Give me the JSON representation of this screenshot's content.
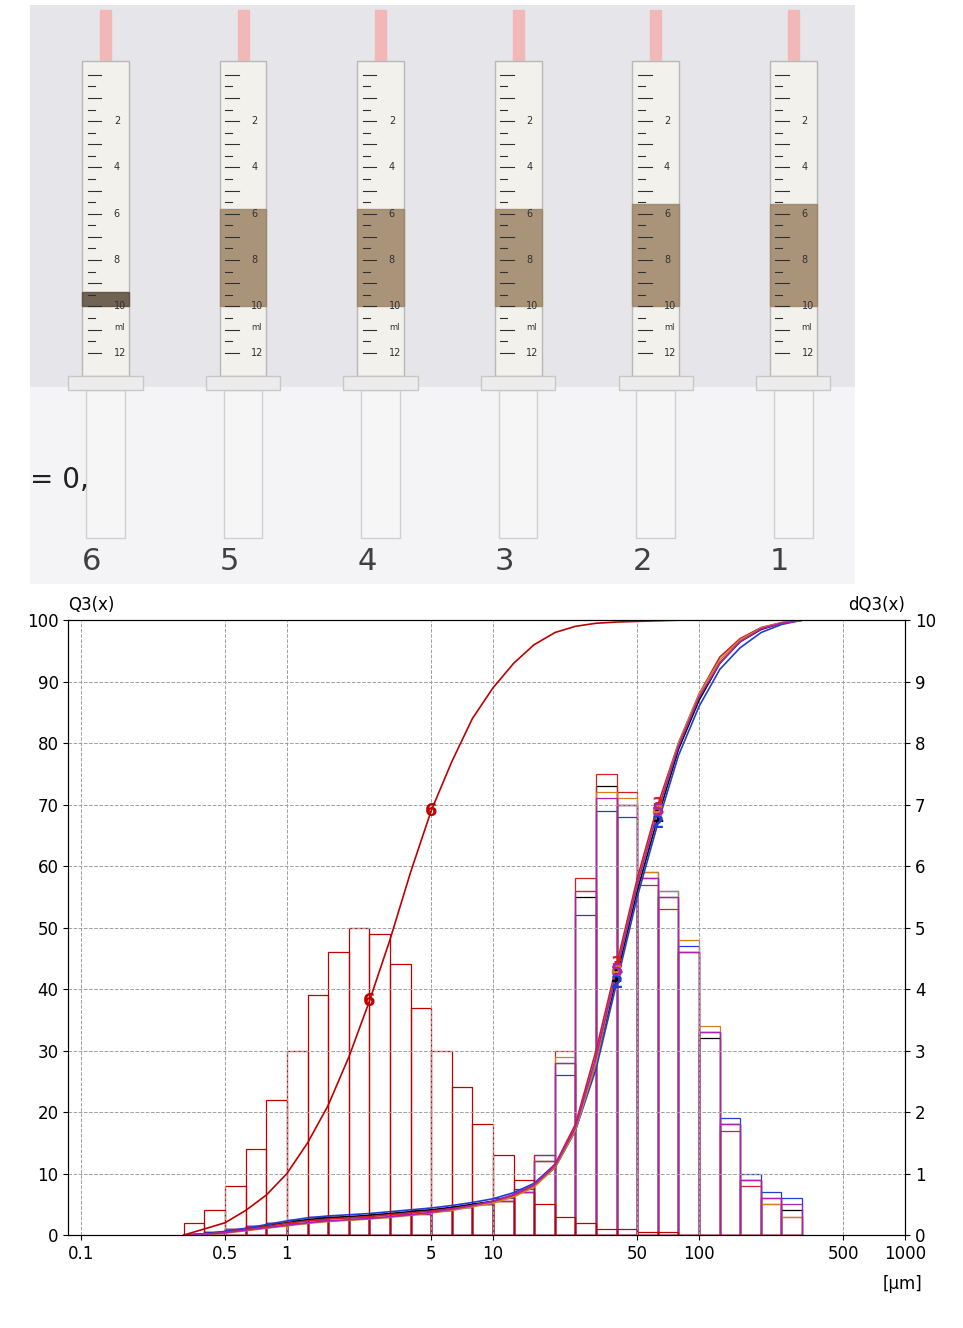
{
  "photo": {
    "syringes": [
      "6",
      "5",
      "4",
      "3",
      "2",
      "1"
    ],
    "scale_labels": [
      2,
      4,
      6,
      8,
      10,
      12
    ],
    "scale_unit": "ml",
    "note": "= 0,",
    "liquid_ml": [
      [
        9.4,
        10
      ],
      [
        5.8,
        10
      ],
      [
        5.8,
        10
      ],
      [
        5.8,
        10
      ],
      [
        5.6,
        10
      ],
      [
        5.6,
        10
      ]
    ]
  },
  "chart_data": {
    "type": "histogram",
    "y_label": "Q3(x)",
    "y2_label": "dQ3(x)",
    "x_label": "[µm]",
    "log": "x",
    "grid": true,
    "xlim": [
      0.087,
      1000
    ],
    "xticks": [
      0.1,
      0.5,
      1,
      5,
      10,
      50,
      100,
      500,
      1000
    ],
    "ylim": [
      0,
      100
    ],
    "yticks": [
      0,
      10,
      20,
      30,
      40,
      50,
      60,
      70,
      80,
      90,
      100
    ],
    "y2lim": [
      0,
      10
    ],
    "y2ticks": [
      0,
      1,
      2,
      3,
      4,
      5,
      6,
      7,
      8,
      9,
      10
    ],
    "x": [
      0.316,
      0.398,
      0.501,
      0.631,
      0.794,
      1,
      1.26,
      1.58,
      2,
      2.51,
      3.16,
      3.98,
      5.01,
      6.31,
      7.94,
      10,
      12.6,
      15.8,
      20,
      25.1,
      31.6,
      39.8,
      50.1,
      63.1,
      79.4,
      100,
      126,
      158,
      200,
      251,
      316
    ],
    "bins": [
      0.316,
      0.398,
      0.501,
      0.631,
      0.794,
      1,
      1.26,
      1.58,
      2,
      2.51,
      3.16,
      3.98,
      5.01,
      6.31,
      7.94,
      10,
      12.6,
      15.8,
      20,
      25.1,
      31.6,
      39.8,
      50.1,
      63.1,
      79.4,
      100,
      126,
      158,
      200,
      251,
      316
    ],
    "series": [
      {
        "name": "1",
        "type": "bar",
        "axis": "y2",
        "color": "#000000",
        "values": [
          0,
          0.05,
          0.1,
          0.15,
          0.2,
          0.25,
          0.3,
          0.3,
          0.3,
          0.35,
          0.35,
          0.4,
          0.4,
          0.45,
          0.5,
          0.55,
          0.7,
          1.2,
          2.8,
          5.5,
          7.3,
          7.0,
          5.8,
          5.5,
          4.6,
          3.2,
          1.8,
          0.9,
          0.6,
          0.4
        ]
      },
      {
        "name": "2",
        "type": "bar",
        "axis": "y2",
        "color": "#1f3fd0",
        "values": [
          0,
          0.05,
          0.1,
          0.15,
          0.2,
          0.25,
          0.3,
          0.3,
          0.3,
          0.35,
          0.35,
          0.4,
          0.4,
          0.45,
          0.5,
          0.6,
          0.75,
          1.3,
          2.6,
          5.2,
          6.9,
          6.8,
          5.9,
          5.6,
          4.7,
          3.3,
          1.9,
          1.0,
          0.7,
          0.6
        ]
      },
      {
        "name": "3",
        "type": "bar",
        "axis": "y2",
        "color": "#d02020",
        "values": [
          0,
          0.05,
          0.1,
          0.15,
          0.2,
          0.2,
          0.25,
          0.3,
          0.3,
          0.3,
          0.35,
          0.35,
          0.4,
          0.45,
          0.5,
          0.55,
          0.7,
          1.3,
          3.0,
          5.8,
          7.5,
          7.2,
          5.7,
          5.3,
          4.6,
          3.3,
          1.7,
          0.8,
          0.5,
          0.3
        ]
      },
      {
        "name": "4",
        "type": "bar",
        "axis": "y2",
        "color": "#d08020",
        "values": [
          0,
          0.05,
          0.1,
          0.15,
          0.15,
          0.2,
          0.25,
          0.3,
          0.3,
          0.3,
          0.35,
          0.35,
          0.4,
          0.45,
          0.5,
          0.55,
          0.7,
          1.2,
          2.9,
          5.6,
          7.2,
          7.1,
          5.9,
          5.6,
          4.8,
          3.4,
          1.8,
          0.9,
          0.5,
          0.3
        ]
      },
      {
        "name": "5",
        "type": "bar",
        "axis": "y2",
        "color": "#b020b0",
        "values": [
          0,
          0.05,
          0.1,
          0.15,
          0.2,
          0.2,
          0.25,
          0.3,
          0.3,
          0.3,
          0.35,
          0.35,
          0.4,
          0.45,
          0.5,
          0.55,
          0.7,
          1.2,
          2.8,
          5.6,
          7.1,
          7.0,
          5.8,
          5.5,
          4.6,
          3.3,
          1.8,
          0.9,
          0.6,
          0.5
        ]
      },
      {
        "name": "6",
        "type": "bar",
        "axis": "y2",
        "color": "#c00000",
        "values": [
          0.2,
          0.4,
          0.8,
          1.4,
          2.2,
          3.0,
          3.9,
          4.6,
          5.0,
          4.9,
          4.4,
          3.7,
          3.0,
          2.4,
          1.8,
          1.3,
          0.9,
          0.5,
          0.3,
          0.2,
          0.1,
          0.1,
          0.05,
          0.05,
          0,
          0,
          0,
          0,
          0,
          0
        ]
      },
      {
        "name": "1",
        "type": "line",
        "color": "#000000",
        "values": [
          0,
          0.2,
          0.5,
          1,
          1.5,
          2,
          2.5,
          2.8,
          3,
          3.2,
          3.5,
          3.8,
          4.1,
          4.5,
          5,
          5.5,
          6.5,
          8,
          11,
          17,
          28,
          42,
          56,
          68,
          79,
          87,
          93,
          96.5,
          98.5,
          99.5,
          100
        ]
      },
      {
        "name": "2",
        "type": "line",
        "color": "#1f3fd0",
        "values": [
          0,
          0.2,
          0.6,
          1.1,
          1.7,
          2.3,
          2.8,
          3.1,
          3.3,
          3.5,
          3.8,
          4.1,
          4.4,
          4.8,
          5.3,
          5.9,
          6.9,
          8.4,
          11.5,
          17,
          27,
          41,
          55,
          67,
          78,
          86,
          92,
          95.5,
          98,
          99.3,
          100
        ]
      },
      {
        "name": "3",
        "type": "line",
        "color": "#d02020",
        "values": [
          0,
          0.1,
          0.4,
          0.9,
          1.4,
          1.9,
          2.3,
          2.6,
          2.8,
          3,
          3.3,
          3.6,
          3.9,
          4.3,
          4.8,
          5.4,
          6.4,
          8,
          11.5,
          18,
          30,
          44,
          58,
          70,
          80,
          88,
          94,
          97,
          98.8,
          99.6,
          100
        ]
      },
      {
        "name": "4",
        "type": "line",
        "color": "#d08020",
        "values": [
          0,
          0.1,
          0.3,
          0.7,
          1.1,
          1.5,
          1.9,
          2.2,
          2.4,
          2.6,
          2.9,
          3.2,
          3.6,
          4,
          4.6,
          5.2,
          6.2,
          7.8,
          11,
          17,
          28,
          43,
          57,
          69,
          80,
          88,
          93.5,
          96.8,
          98.7,
          99.6,
          100
        ]
      },
      {
        "name": "5",
        "type": "line",
        "color": "#b020b0",
        "values": [
          0,
          0.1,
          0.4,
          0.8,
          1.2,
          1.6,
          2,
          2.3,
          2.5,
          2.7,
          3,
          3.3,
          3.7,
          4.2,
          4.8,
          5.5,
          6.6,
          8.2,
          11.3,
          17.5,
          29,
          43,
          57,
          69,
          79.5,
          87.5,
          93,
          96.5,
          98.6,
          99.5,
          100
        ]
      },
      {
        "name": "6",
        "type": "line",
        "color": "#c00000",
        "values": [
          0,
          1,
          2,
          4,
          6.5,
          10,
          15,
          21,
          29,
          38,
          48,
          59,
          69,
          77,
          84,
          89,
          93,
          96,
          98,
          99,
          99.5,
          99.7,
          99.8,
          99.9,
          100,
          100,
          100,
          100,
          100,
          100,
          100
        ]
      }
    ]
  }
}
